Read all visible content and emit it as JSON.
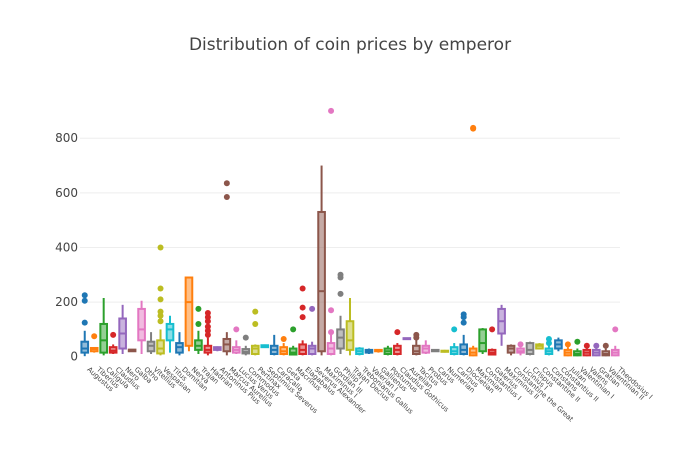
{
  "chart_data": {
    "type": "box",
    "title": "Distribution of coin prices by emperor",
    "xlabel": "",
    "ylabel": "",
    "ylim": [
      -12,
      940
    ],
    "yticks": [
      0,
      200,
      400,
      600,
      800
    ],
    "grid": "horizontal",
    "legend": "none",
    "palette": [
      "#1f77b4",
      "#ff7f0e",
      "#2ca02c",
      "#d62728",
      "#9467bd",
      "#8c564b",
      "#e377c2",
      "#7f7f7f",
      "#bcbd22",
      "#17becf"
    ],
    "series": [
      {
        "name": "Augustus",
        "q1": 15,
        "median": 30,
        "q3": 55,
        "low": 2,
        "high": 95,
        "outliers": [
          125,
          205,
          225
        ]
      },
      {
        "name": "Tiberius",
        "q1": 20,
        "median": 28,
        "q3": 32,
        "low": 15,
        "high": 35,
        "outliers": [
          75
        ]
      },
      {
        "name": "Caligula",
        "q1": 15,
        "median": 60,
        "q3": 120,
        "low": 5,
        "high": 215,
        "outliers": []
      },
      {
        "name": "Claudius",
        "q1": 15,
        "median": 22,
        "q3": 35,
        "low": 10,
        "high": 45,
        "outliers": [
          80
        ]
      },
      {
        "name": "Nero",
        "q1": 30,
        "median": 85,
        "q3": 140,
        "low": 10,
        "high": 190,
        "outliers": []
      },
      {
        "name": "Galba",
        "q1": 20,
        "median": 24,
        "q3": 26,
        "low": 20,
        "high": 28,
        "outliers": []
      },
      {
        "name": "Otho",
        "q1": 60,
        "median": 100,
        "q3": 175,
        "low": 10,
        "high": 205,
        "outliers": []
      },
      {
        "name": "Vitellius",
        "q1": 20,
        "median": 40,
        "q3": 55,
        "low": 10,
        "high": 90,
        "outliers": []
      },
      {
        "name": "Vespasian",
        "q1": 12,
        "median": 30,
        "q3": 60,
        "low": 5,
        "high": 100,
        "outliers": [
          130,
          150,
          165,
          210,
          250,
          400
        ]
      },
      {
        "name": "Titus",
        "q1": 60,
        "median": 100,
        "q3": 120,
        "low": 15,
        "high": 150,
        "outliers": []
      },
      {
        "name": "Domitian",
        "q1": 15,
        "median": 35,
        "q3": 50,
        "low": 5,
        "high": 90,
        "outliers": []
      },
      {
        "name": "Nerva",
        "q1": 40,
        "median": 200,
        "q3": 290,
        "low": 20,
        "high": 290,
        "outliers": []
      },
      {
        "name": "Trajan",
        "q1": 25,
        "median": 40,
        "q3": 60,
        "low": 10,
        "high": 95,
        "outliers": [
          120,
          175
        ]
      },
      {
        "name": "Hadrian",
        "q1": 15,
        "median": 25,
        "q3": 40,
        "low": 5,
        "high": 70,
        "outliers": [
          80,
          95,
          110,
          130,
          145,
          160
        ]
      },
      {
        "name": "Antoninus Pius",
        "q1": 25,
        "median": 30,
        "q3": 35,
        "low": 20,
        "high": 38,
        "outliers": []
      },
      {
        "name": "Marcus Aurelius",
        "q1": 20,
        "median": 45,
        "q3": 65,
        "low": 5,
        "high": 90,
        "outliers": [
          585,
          635
        ]
      },
      {
        "name": "Lucius Verus",
        "q1": 15,
        "median": 25,
        "q3": 35,
        "low": 10,
        "high": 60,
        "outliers": [
          100
        ]
      },
      {
        "name": "Commodus",
        "q1": 12,
        "median": 18,
        "q3": 28,
        "low": 5,
        "high": 40,
        "outliers": [
          70
        ]
      },
      {
        "name": "Pertinax",
        "q1": 10,
        "median": 30,
        "q3": 40,
        "low": 5,
        "high": 45,
        "outliers": [
          120,
          165
        ]
      },
      {
        "name": "Septimius Severus",
        "q1": 35,
        "median": 40,
        "q3": 42,
        "low": 35,
        "high": 45,
        "outliers": []
      },
      {
        "name": "Caracalla",
        "q1": 10,
        "median": 25,
        "q3": 40,
        "low": 5,
        "high": 80,
        "outliers": []
      },
      {
        "name": "Geta",
        "q1": 10,
        "median": 20,
        "q3": 35,
        "low": 5,
        "high": 50,
        "outliers": [
          65
        ]
      },
      {
        "name": "Macrinus",
        "q1": 8,
        "median": 15,
        "q3": 30,
        "low": 5,
        "high": 40,
        "outliers": [
          100
        ]
      },
      {
        "name": "Elagabalus",
        "q1": 10,
        "median": 25,
        "q3": 45,
        "low": 5,
        "high": 60,
        "outliers": [
          145,
          180,
          250
        ]
      },
      {
        "name": "Severus Alexander",
        "q1": 10,
        "median": 30,
        "q3": 40,
        "low": 5,
        "high": 55,
        "outliers": [
          175
        ]
      },
      {
        "name": "Maximinus I",
        "q1": 20,
        "median": 240,
        "q3": 530,
        "low": 5,
        "high": 700,
        "outliers": []
      },
      {
        "name": "Gordian III",
        "q1": 10,
        "median": 30,
        "q3": 50,
        "low": 5,
        "high": 80,
        "outliers": [
          90,
          170,
          900
        ]
      },
      {
        "name": "Philip I",
        "q1": 30,
        "median": 70,
        "q3": 100,
        "low": 10,
        "high": 150,
        "outliers": [
          230,
          290,
          300
        ]
      },
      {
        "name": "Trajan Decius",
        "q1": 25,
        "median": 60,
        "q3": 130,
        "low": 5,
        "high": 215,
        "outliers": []
      },
      {
        "name": "Trebonianus Gallus",
        "q1": 10,
        "median": 20,
        "q3": 30,
        "low": 5,
        "high": 35,
        "outliers": []
      },
      {
        "name": "Valerian I",
        "q1": 15,
        "median": 20,
        "q3": 25,
        "low": 10,
        "high": 30,
        "outliers": []
      },
      {
        "name": "Gallienus",
        "q1": 20,
        "median": 23,
        "q3": 25,
        "low": 15,
        "high": 28,
        "outliers": []
      },
      {
        "name": "Postumus",
        "q1": 10,
        "median": 20,
        "q3": 30,
        "low": 5,
        "high": 40,
        "outliers": []
      },
      {
        "name": "Claudius Gothicus",
        "q1": 10,
        "median": 25,
        "q3": 40,
        "low": 5,
        "high": 50,
        "outliers": [
          90
        ]
      },
      {
        "name": "Aurelian",
        "q1": 65,
        "median": 66,
        "q3": 68,
        "low": 65,
        "high": 68,
        "outliers": []
      },
      {
        "name": "Tacitus",
        "q1": 10,
        "median": 20,
        "q3": 40,
        "low": 5,
        "high": 60,
        "outliers": [
          70,
          80
        ]
      },
      {
        "name": "Probus",
        "q1": 15,
        "median": 30,
        "q3": 40,
        "low": 10,
        "high": 60,
        "outliers": []
      },
      {
        "name": "Carus",
        "q1": 20,
        "median": 22,
        "q3": 25,
        "low": 20,
        "high": 25,
        "outliers": []
      },
      {
        "name": "Numerian",
        "q1": 18,
        "median": 20,
        "q3": 22,
        "low": 15,
        "high": 25,
        "outliers": []
      },
      {
        "name": "Carinus",
        "q1": 10,
        "median": 20,
        "q3": 35,
        "low": 5,
        "high": 50,
        "outliers": [
          100
        ]
      },
      {
        "name": "Diocletian",
        "q1": 10,
        "median": 25,
        "q3": 45,
        "low": 5,
        "high": 80,
        "outliers": [
          125,
          145,
          155
        ]
      },
      {
        "name": "Maximian",
        "q1": 5,
        "median": 15,
        "q3": 30,
        "low": 2,
        "high": 40,
        "outliers": [
          835,
          838
        ]
      },
      {
        "name": "Constantius I",
        "q1": 20,
        "median": 50,
        "q3": 100,
        "low": 10,
        "high": 105,
        "outliers": []
      },
      {
        "name": "Galerius",
        "q1": 8,
        "median": 15,
        "q3": 25,
        "low": 5,
        "high": 30,
        "outliers": [
          100
        ]
      },
      {
        "name": "Maximinus II",
        "q1": 85,
        "median": 130,
        "q3": 175,
        "low": 40,
        "high": 190,
        "outliers": []
      },
      {
        "name": "Constantine the Great",
        "q1": 15,
        "median": 30,
        "q3": 40,
        "low": 5,
        "high": 45,
        "outliers": []
      },
      {
        "name": "Licinius I",
        "q1": 15,
        "median": 20,
        "q3": 30,
        "low": 5,
        "high": 35,
        "outliers": [
          45
        ]
      },
      {
        "name": "Crispus",
        "q1": 10,
        "median": 25,
        "q3": 50,
        "low": 5,
        "high": 55,
        "outliers": []
      },
      {
        "name": "Constantine II",
        "q1": 30,
        "median": 40,
        "q3": 45,
        "low": 30,
        "high": 50,
        "outliers": []
      },
      {
        "name": "Constans",
        "q1": 10,
        "median": 20,
        "q3": 30,
        "low": 5,
        "high": 40,
        "outliers": [
          50,
          65
        ]
      },
      {
        "name": "Constantius II",
        "q1": 30,
        "median": 45,
        "q3": 60,
        "low": 20,
        "high": 70,
        "outliers": []
      },
      {
        "name": "Julian",
        "q1": 5,
        "median": 15,
        "q3": 25,
        "low": 2,
        "high": 35,
        "outliers": [
          45
        ]
      },
      {
        "name": "Valentinian I",
        "q1": 5,
        "median": 10,
        "q3": 20,
        "low": 2,
        "high": 30,
        "outliers": [
          55
        ]
      },
      {
        "name": "Valens",
        "q1": 5,
        "median": 15,
        "q3": 25,
        "low": 2,
        "high": 30,
        "outliers": [
          40
        ]
      },
      {
        "name": "Gratian",
        "q1": 5,
        "median": 15,
        "q3": 25,
        "low": 2,
        "high": 30,
        "outliers": [
          40
        ]
      },
      {
        "name": "Valentinian II",
        "q1": 5,
        "median": 10,
        "q3": 20,
        "low": 2,
        "high": 30,
        "outliers": [
          40
        ]
      },
      {
        "name": "Theodosius I",
        "q1": 5,
        "median": 15,
        "q3": 25,
        "low": 2,
        "high": 40,
        "outliers": [
          100
        ]
      }
    ]
  }
}
